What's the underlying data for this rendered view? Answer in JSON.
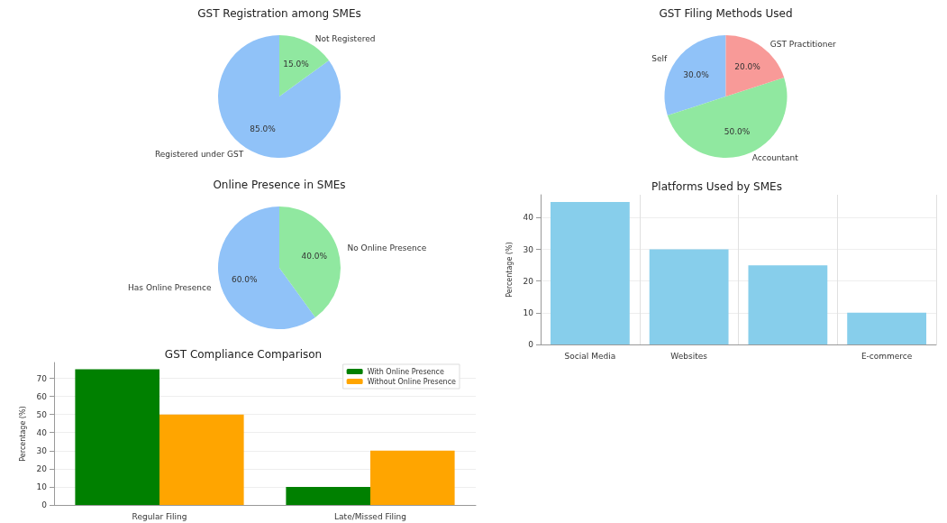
{
  "chart_data": [
    {
      "type": "pie",
      "title": "GST Registration among SMEs",
      "categories": [
        "Registered under GST",
        "Not Registered"
      ],
      "values": [
        85,
        15
      ],
      "colors": [
        "#90c2f8",
        "#90e8a0"
      ],
      "value_labels": [
        "85.0%",
        "15.0%"
      ]
    },
    {
      "type": "pie",
      "title": "GST Filing Methods Used",
      "categories": [
        "Self",
        "Accountant",
        "GST Practitioner"
      ],
      "values": [
        30,
        50,
        20
      ],
      "colors": [
        "#90c2f8",
        "#90e8a0",
        "#f89a98"
      ],
      "value_labels": [
        "30.0%",
        "50.0%",
        "20.0%"
      ]
    },
    {
      "type": "pie",
      "title": "Online Presence in SMEs",
      "categories": [
        "Has Online Presence",
        "No Online Presence"
      ],
      "values": [
        60,
        40
      ],
      "colors": [
        "#90c2f8",
        "#90e8a0"
      ],
      "value_labels": [
        "60.0%",
        "40.0%"
      ]
    },
    {
      "type": "bar",
      "title": "Platforms Used by SMEs",
      "ylabel": "Percentage (%)",
      "categories": [
        "Social Media",
        "Websites",
        null,
        "E-commerce"
      ],
      "values": [
        45,
        30,
        25,
        10
      ],
      "color": "#87ceeb",
      "ylim": [
        0,
        47.25
      ],
      "yticks": [
        0,
        10,
        20,
        30,
        40
      ],
      "grid": true
    },
    {
      "type": "bar",
      "title": "GST Compliance Comparison",
      "ylabel": "Percentage (%)",
      "categories": [
        "Regular Filing",
        "Late/Missed Filing"
      ],
      "series": [
        {
          "name": "With Online Presence",
          "color": "#008000",
          "values": [
            75,
            10
          ]
        },
        {
          "name": "Without Online Presence",
          "color": "#ffa500",
          "values": [
            50,
            30
          ]
        }
      ],
      "ylim": [
        0,
        78.75
      ],
      "yticks": [
        0,
        10,
        20,
        30,
        40,
        50,
        60,
        70
      ],
      "grid": "y",
      "legend": "top right"
    }
  ]
}
